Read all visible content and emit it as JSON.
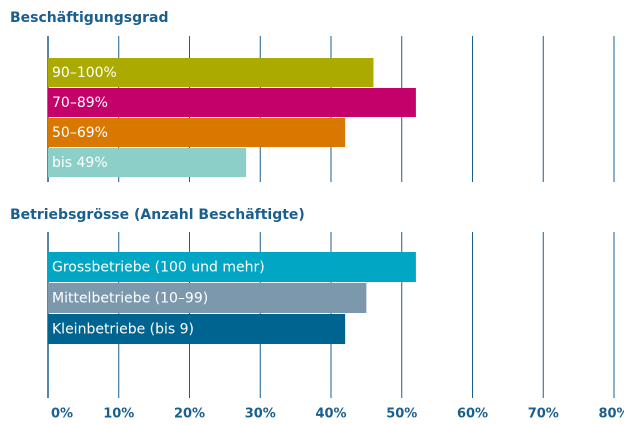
{
  "chart_data": [
    {
      "type": "barh",
      "title": "Beschäftigungsgrad",
      "categories": [
        "90–100%",
        "70–89%",
        "50–69%",
        "bis 49%"
      ],
      "values": [
        46,
        52,
        42,
        28
      ],
      "colors": [
        "#aaaa00",
        "#c4006b",
        "#d97800",
        "#8bcfc8"
      ],
      "xlim": [
        0,
        80
      ],
      "xticks": [
        0,
        10,
        20,
        30,
        40,
        50,
        60,
        70,
        80
      ],
      "grid": true
    },
    {
      "type": "barh",
      "title": "Betriebsgrösse (Anzahl Beschäftigte)",
      "categories": [
        "Grossbetriebe (100 und mehr)",
        "Mittelbetriebe (10–99)",
        "Kleinbetriebe (bis 9)"
      ],
      "values": [
        52,
        45,
        42
      ],
      "colors": [
        "#00a6c4",
        "#7b98ac",
        "#006491"
      ],
      "xlim": [
        0,
        80
      ],
      "xticks": [
        {
          "value": 0,
          "label": "0%"
        },
        {
          "value": 10,
          "label": "10%"
        },
        {
          "value": 20,
          "label": "20%"
        },
        {
          "value": 30,
          "label": "30%"
        },
        {
          "value": 40,
          "label": "40%"
        },
        {
          "value": 50,
          "label": "50%"
        },
        {
          "value": 60,
          "label": "60%"
        },
        {
          "value": 70,
          "label": "70%"
        },
        {
          "value": 80,
          "label": "80%"
        }
      ],
      "grid": true
    }
  ]
}
